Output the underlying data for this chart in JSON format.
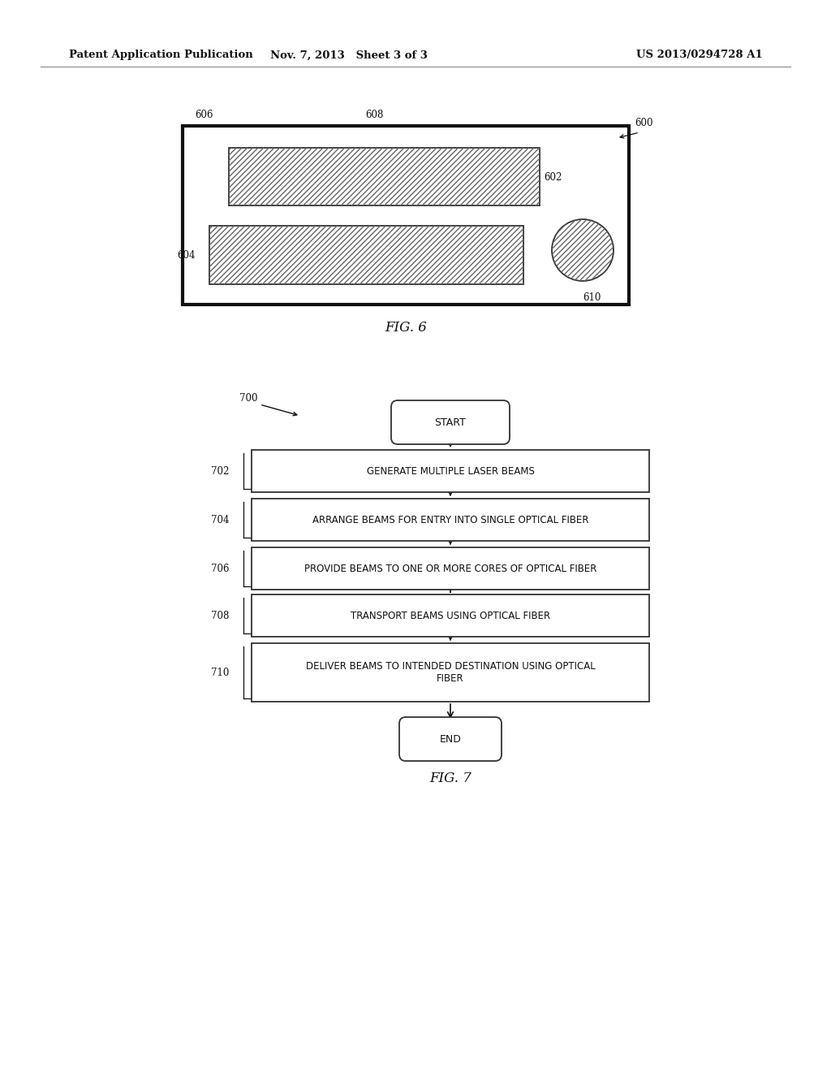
{
  "background_color": "#ffffff",
  "header_left": "Patent Application Publication",
  "header_mid": "Nov. 7, 2013   Sheet 3 of 3",
  "header_right": "US 2013/0294728 A1",
  "fig6_title": "FIG. 6",
  "fig7_title": "FIG. 7",
  "label_600": "600",
  "label_606": "606",
  "label_608": "608",
  "label_602": "602",
  "label_604": "604",
  "label_610": "610",
  "label_700": "700",
  "label_702": "702",
  "label_704": "704",
  "label_706": "706",
  "label_708": "708",
  "label_710": "710",
  "start_text": "START",
  "end_text": "END",
  "step_texts": [
    "GENERATE MULTIPLE LASER BEAMS",
    "ARRANGE BEAMS FOR ENTRY INTO SINGLE OPTICAL FIBER",
    "PROVIDE BEAMS TO ONE OR MORE CORES OF OPTICAL FIBER",
    "TRANSPORT BEAMS USING OPTICAL FIBER",
    "DELIVER BEAMS TO INTENDED DESTINATION USING OPTICAL\nFIBER"
  ]
}
